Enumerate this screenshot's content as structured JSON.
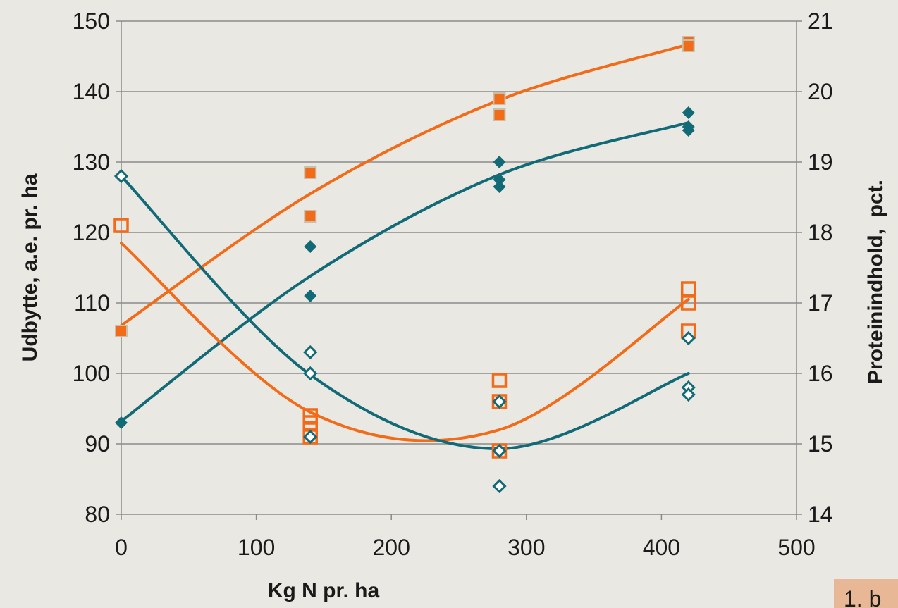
{
  "chart_data": {
    "type": "scatter",
    "title": "",
    "xlabel": "Kg N pr. ha",
    "ylabel": "Udbytte, a.e. pr. ha",
    "y2label": "Proteinindhold,  pct.",
    "xlim": [
      0,
      500
    ],
    "ylim": [
      80,
      150
    ],
    "y2lim": [
      14,
      21
    ],
    "x_ticks": [
      "0",
      "100",
      "200",
      "300",
      "400",
      "500"
    ],
    "y_ticks": [
      "80",
      "90",
      "100",
      "110",
      "120",
      "130",
      "140",
      "150"
    ],
    "y2_ticks": [
      "14",
      "15",
      "16",
      "17",
      "18",
      "19",
      "20",
      "21"
    ],
    "grid": true,
    "legend": "none",
    "series": [
      {
        "axis": "left",
        "marker": "square-filled",
        "color": "#f26b18",
        "points": [
          [
            0,
            106
          ],
          [
            140,
            128.5
          ],
          [
            140,
            122.3
          ],
          [
            280,
            139
          ],
          [
            280,
            136.7
          ],
          [
            420,
            147
          ],
          [
            420,
            146.5
          ]
        ],
        "trend": [
          [
            0,
            106.8
          ],
          [
            140,
            125.5
          ],
          [
            280,
            138.8
          ],
          [
            420,
            146.7
          ]
        ]
      },
      {
        "axis": "left",
        "marker": "diamond-filled",
        "color": "#136a77",
        "points": [
          [
            0,
            93
          ],
          [
            140,
            118
          ],
          [
            140,
            111
          ],
          [
            280,
            130
          ],
          [
            280,
            127.5
          ],
          [
            280,
            126.5
          ],
          [
            420,
            137
          ],
          [
            420,
            135
          ],
          [
            420,
            134.5
          ]
        ],
        "trend": [
          [
            0,
            93.2
          ],
          [
            140,
            113.8
          ],
          [
            280,
            128.2
          ],
          [
            420,
            135.6
          ]
        ]
      },
      {
        "axis": "right",
        "marker": "square-open",
        "color": "#f26b18",
        "points": [
          [
            0,
            18.1
          ],
          [
            140,
            15.4
          ],
          [
            140,
            15.3
          ],
          [
            140,
            15.2
          ],
          [
            140,
            15.1
          ],
          [
            280,
            15.9
          ],
          [
            280,
            15.6
          ],
          [
            280,
            14.9
          ],
          [
            420,
            17.2
          ],
          [
            420,
            17.0
          ],
          [
            420,
            16.6
          ]
        ],
        "trend": [
          [
            0,
            17.85
          ],
          [
            140,
            15.45
          ],
          [
            280,
            15.2
          ],
          [
            420,
            17.05
          ]
        ]
      },
      {
        "axis": "right",
        "marker": "diamond-open",
        "color": "#136a77",
        "points": [
          [
            0,
            18.8
          ],
          [
            140,
            16.3
          ],
          [
            140,
            16.0
          ],
          [
            140,
            15.1
          ],
          [
            280,
            15.6
          ],
          [
            280,
            14.9
          ],
          [
            280,
            14.4
          ],
          [
            420,
            16.5
          ],
          [
            420,
            15.8
          ],
          [
            420,
            15.7
          ]
        ],
        "trend": [
          [
            0,
            18.8
          ],
          [
            140,
            15.98
          ],
          [
            280,
            14.93
          ],
          [
            420,
            16.0
          ]
        ]
      }
    ]
  },
  "badge": {
    "text": "1. b"
  }
}
